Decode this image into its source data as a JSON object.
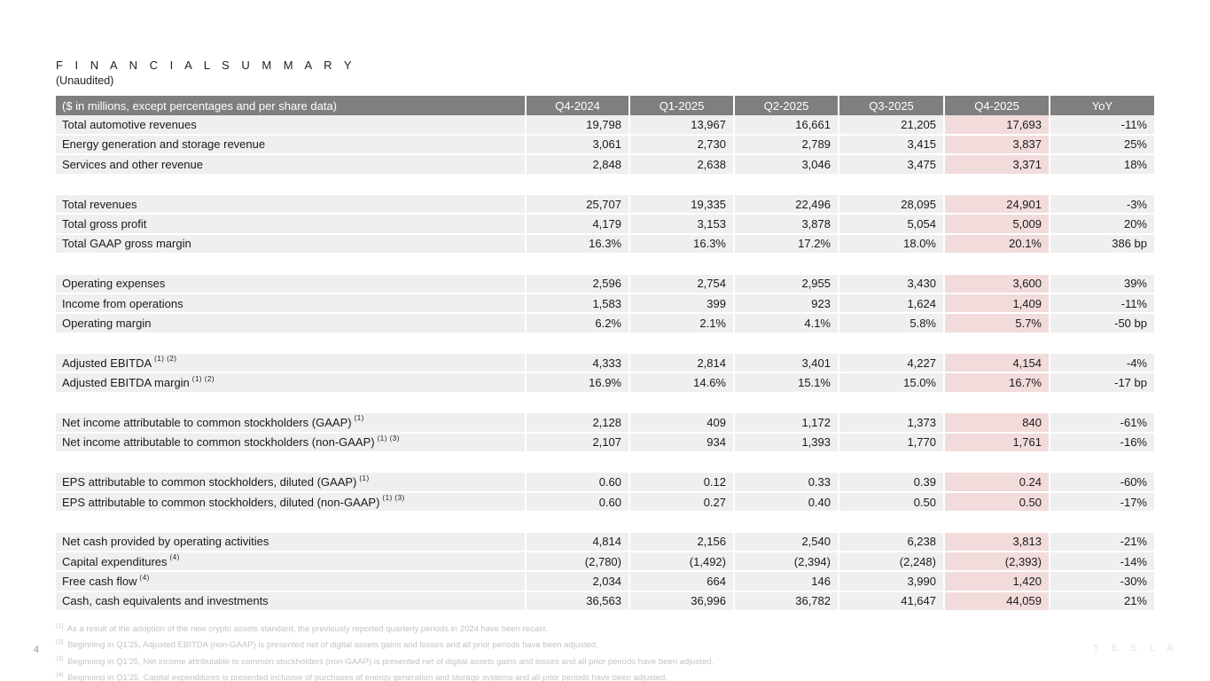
{
  "page": {
    "title": "F I N A N C I A L   S U M M A R Y",
    "subtitle": "(Unaudited)",
    "page_number": "4",
    "watermark": "T  E  S  L  A"
  },
  "colors": {
    "header_bg": "#7f7f7f",
    "header_text": "#ffffff",
    "row_bg": "#efefef",
    "highlight_bg": "#f1dcdb",
    "footnote_text": "#c3c3c3"
  },
  "table": {
    "highlight_index": 5,
    "columns": [
      "($ in millions, except percentages and per share data)",
      "Q4-2024",
      "Q1-2025",
      "Q2-2025",
      "Q3-2025",
      "Q4-2025",
      "YoY"
    ],
    "rows": [
      {
        "label": "Total automotive revenues",
        "values": [
          "19,798",
          "13,967",
          "16,661",
          "21,205",
          "17,693",
          "-11%"
        ]
      },
      {
        "label": "Energy generation and storage revenue",
        "values": [
          "3,061",
          "2,730",
          "2,789",
          "3,415",
          "3,837",
          "25%"
        ]
      },
      {
        "label": "Services and other revenue",
        "values": [
          "2,848",
          "2,638",
          "3,046",
          "3,475",
          "3,371",
          "18%"
        ]
      },
      {
        "spacer": true
      },
      {
        "label": "Total revenues",
        "values": [
          "25,707",
          "19,335",
          "22,496",
          "28,095",
          "24,901",
          "-3%"
        ]
      },
      {
        "label": "Total gross profit",
        "values": [
          "4,179",
          "3,153",
          "3,878",
          "5,054",
          "5,009",
          "20%"
        ]
      },
      {
        "label": "Total GAAP gross margin",
        "values": [
          "16.3%",
          "16.3%",
          "17.2%",
          "18.0%",
          "20.1%",
          "386 bp"
        ]
      },
      {
        "spacer": true
      },
      {
        "label": "Operating expenses",
        "values": [
          "2,596",
          "2,754",
          "2,955",
          "3,430",
          "3,600",
          "39%"
        ]
      },
      {
        "label": "Income from operations",
        "values": [
          "1,583",
          "399",
          "923",
          "1,624",
          "1,409",
          "-11%"
        ]
      },
      {
        "label": "Operating margin",
        "values": [
          "6.2%",
          "2.1%",
          "4.1%",
          "5.8%",
          "5.7%",
          "-50 bp"
        ]
      },
      {
        "spacer": true
      },
      {
        "label": "Adjusted EBITDA",
        "sup": "(1) (2)",
        "values": [
          "4,333",
          "2,814",
          "3,401",
          "4,227",
          "4,154",
          "-4%"
        ]
      },
      {
        "label": "Adjusted EBITDA margin",
        "sup": "(1) (2)",
        "values": [
          "16.9%",
          "14.6%",
          "15.1%",
          "15.0%",
          "16.7%",
          "-17 bp"
        ]
      },
      {
        "spacer": true
      },
      {
        "label": "Net income attributable to common stockholders (GAAP)",
        "sup": "(1)",
        "values": [
          "2,128",
          "409",
          "1,172",
          "1,373",
          "840",
          "-61%"
        ]
      },
      {
        "label": "Net income attributable to common stockholders (non-GAAP)",
        "sup": "(1) (3)",
        "values": [
          "2,107",
          "934",
          "1,393",
          "1,770",
          "1,761",
          "-16%"
        ]
      },
      {
        "spacer": true
      },
      {
        "label": "EPS attributable to common stockholders, diluted (GAAP)",
        "sup": "(1)",
        "values": [
          "0.60",
          "0.12",
          "0.33",
          "0.39",
          "0.24",
          "-60%"
        ]
      },
      {
        "label": "EPS attributable to common stockholders, diluted (non-GAAP)",
        "sup": "(1) (3)",
        "values": [
          "0.60",
          "0.27",
          "0.40",
          "0.50",
          "0.50",
          "-17%"
        ]
      },
      {
        "spacer": true
      },
      {
        "label": "Net cash provided by operating activities",
        "values": [
          "4,814",
          "2,156",
          "2,540",
          "6,238",
          "3,813",
          "-21%"
        ]
      },
      {
        "label": "Capital expenditures",
        "sup": "(4)",
        "values": [
          "(2,780)",
          "(1,492)",
          "(2,394)",
          "(2,248)",
          "(2,393)",
          "-14%"
        ]
      },
      {
        "label": "Free cash flow",
        "sup": "(4)",
        "values": [
          "2,034",
          "664",
          "146",
          "3,990",
          "1,420",
          "-30%"
        ]
      },
      {
        "label": "Cash, cash equivalents and investments",
        "values": [
          "36,563",
          "36,996",
          "36,782",
          "41,647",
          "44,059",
          "21%"
        ]
      }
    ]
  },
  "footnotes": [
    {
      "marker": "(1)",
      "text": "As a result of the adoption of the new crypto assets standard, the previously reported quarterly periods in 2024 have been recast."
    },
    {
      "marker": "(2)",
      "text": "Beginning in Q1'25, Adjusted EBITDA (non-GAAP) is presented net of digital assets gains and losses and all prior periods have been adjusted."
    },
    {
      "marker": "(3)",
      "text": "Beginning in Q1'25, Net income attributable to common stockholders (non-GAAP) is presented net of digital assets gains and losses and all prior periods have been adjusted."
    },
    {
      "marker": "(4)",
      "text": "Beginning in Q1'25, Capital expenditures is presented inclusive of purchases of energy generation and storage systems and all prior periods have been adjusted."
    }
  ]
}
